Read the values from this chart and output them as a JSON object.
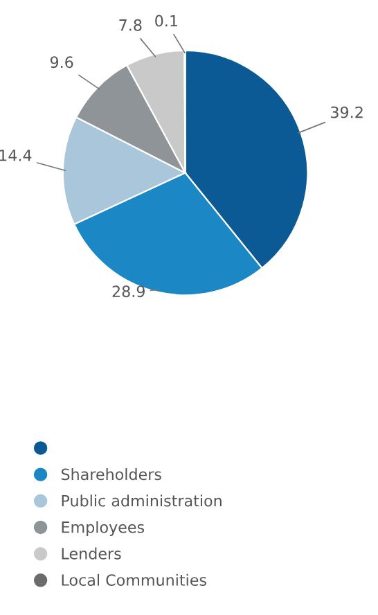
{
  "chart_data": {
    "type": "pie",
    "categories": [
      null,
      "Shareholders",
      "Public administration",
      "Employees",
      "Lenders",
      "Local Communities"
    ],
    "values": [
      39.2,
      28.9,
      14.4,
      9.6,
      7.8,
      0.1
    ],
    "colors": [
      "#0b5a95",
      "#1b87c5",
      "#a9c6db",
      "#8e9497",
      "#c9c9c9",
      "#6b6b6b"
    ],
    "data_labels": true,
    "legend": "bottom"
  }
}
